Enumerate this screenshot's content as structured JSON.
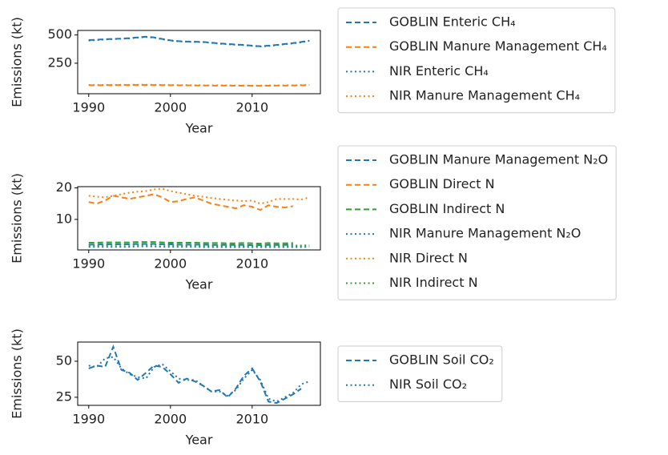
{
  "chart_data": [
    {
      "type": "line",
      "xlabel": "Year",
      "ylabel": "Emissions (kt)",
      "x": [
        1990,
        1991,
        1992,
        1993,
        1994,
        1995,
        1996,
        1997,
        1998,
        1999,
        2000,
        2001,
        2002,
        2003,
        2004,
        2005,
        2006,
        2007,
        2008,
        2009,
        2010,
        2011,
        2012,
        2013,
        2014,
        2015,
        2016,
        2017
      ],
      "xlim": [
        1988.65,
        2018.35
      ],
      "xticks": [
        1990,
        2000,
        2010
      ],
      "ylim": [
        -20,
        540
      ],
      "yticks": [
        250,
        500
      ],
      "series": [
        {
          "name": "GOBLIN Enteric CH₄",
          "color": "#1f77b4",
          "style": "dashed",
          "values": [
            455,
            458,
            462,
            465,
            468,
            472,
            478,
            485,
            478,
            465,
            452,
            445,
            442,
            440,
            438,
            432,
            425,
            420,
            415,
            412,
            405,
            400,
            405,
            412,
            420,
            428,
            438,
            450
          ]
        },
        {
          "name": "GOBLIN Manure Management CH₄",
          "color": "#ff7f0e",
          "style": "dashed",
          "values": [
            55,
            55,
            56,
            56,
            57,
            57,
            58,
            58,
            57,
            56,
            55,
            54,
            54,
            53,
            53,
            52,
            52,
            52,
            51,
            51,
            50,
            50,
            51,
            52,
            52,
            53,
            54,
            55
          ]
        },
        {
          "name": "NIR Enteric CH₄",
          "color": "#1f77b4",
          "style": "dotted",
          "values": [
            450,
            455,
            460,
            463,
            466,
            470,
            476,
            482,
            476,
            462,
            450,
            443,
            440,
            438,
            436,
            430,
            423,
            418,
            413,
            410,
            403,
            398,
            402,
            410,
            418,
            425,
            435,
            448
          ]
        },
        {
          "name": "NIR Manure Management CH₄",
          "color": "#ff7f0e",
          "style": "dotted",
          "values": [
            57,
            57,
            58,
            58,
            59,
            59,
            60,
            60,
            59,
            58,
            57,
            56,
            56,
            55,
            55,
            54,
            54,
            54,
            53,
            53,
            52,
            52,
            53,
            54,
            54,
            55,
            56,
            58
          ]
        }
      ]
    },
    {
      "type": "line",
      "xlabel": "Year",
      "ylabel": "Emissions (kt)",
      "x": [
        1990,
        1991,
        1992,
        1993,
        1994,
        1995,
        1996,
        1997,
        1998,
        1999,
        2000,
        2001,
        2002,
        2003,
        2004,
        2005,
        2006,
        2007,
        2008,
        2009,
        2010,
        2011,
        2012,
        2013,
        2014,
        2015,
        2016,
        2017
      ],
      "xlim": [
        1988.65,
        2018.35
      ],
      "xticks": [
        1990,
        2000,
        2010
      ],
      "ylim": [
        0.3,
        20.4
      ],
      "yticks": [
        10,
        20
      ],
      "series": [
        {
          "name": "GOBLIN Manure Management N₂O",
          "color": "#1f77b4",
          "style": "dashed",
          "values": [
            2.0,
            2.0,
            2.1,
            2.1,
            2.1,
            2.1,
            2.2,
            2.2,
            2.2,
            2.1,
            2.1,
            2.0,
            2.0,
            2.0,
            2.0,
            1.9,
            1.9,
            1.9,
            1.9,
            1.9,
            1.8,
            1.8,
            1.9,
            1.9,
            1.9,
            2.0,
            null,
            null
          ]
        },
        {
          "name": "GOBLIN Direct N",
          "color": "#ff7f0e",
          "style": "dashed",
          "values": [
            15.5,
            15.0,
            16.0,
            17.5,
            17.0,
            16.5,
            17.0,
            17.5,
            18.0,
            17.0,
            15.5,
            15.8,
            16.5,
            17.0,
            16.0,
            15.0,
            14.5,
            14.0,
            13.5,
            14.5,
            14.0,
            13.0,
            14.5,
            14.0,
            13.8,
            14.2,
            null,
            null
          ]
        },
        {
          "name": "GOBLIN Indirect N",
          "color": "#2ca02c",
          "style": "dashed",
          "values": [
            2.6,
            2.6,
            2.7,
            2.7,
            2.7,
            2.7,
            2.8,
            2.8,
            2.8,
            2.7,
            2.6,
            2.6,
            2.6,
            2.6,
            2.5,
            2.5,
            2.5,
            2.4,
            2.4,
            2.5,
            2.4,
            2.3,
            2.5,
            2.4,
            2.4,
            2.5,
            null,
            null
          ]
        },
        {
          "name": "NIR Manure Management N₂O",
          "color": "#1f77b4",
          "style": "dotted",
          "values": [
            1.3,
            1.3,
            1.3,
            1.3,
            1.3,
            1.3,
            1.4,
            1.4,
            1.4,
            1.3,
            1.3,
            1.3,
            1.3,
            1.3,
            1.2,
            1.2,
            1.2,
            1.2,
            1.2,
            1.2,
            1.2,
            1.2,
            1.2,
            1.2,
            1.2,
            1.2,
            1.2,
            1.3
          ]
        },
        {
          "name": "NIR Direct N",
          "color": "#ff7f0e",
          "style": "dotted",
          "values": [
            17.5,
            17.2,
            17.0,
            17.5,
            18.0,
            18.5,
            18.8,
            19.0,
            19.5,
            19.8,
            19.0,
            18.5,
            18.0,
            17.5,
            17.2,
            16.8,
            16.5,
            16.2,
            16.0,
            15.8,
            16.0,
            15.0,
            15.5,
            16.5,
            16.5,
            16.5,
            16.3,
            17.0
          ]
        },
        {
          "name": "NIR Indirect N",
          "color": "#2ca02c",
          "style": "dotted",
          "values": [
            1.8,
            1.8,
            1.8,
            1.9,
            1.9,
            1.9,
            1.9,
            1.9,
            2.0,
            1.9,
            1.8,
            1.8,
            1.8,
            1.8,
            1.7,
            1.7,
            1.7,
            1.7,
            1.6,
            1.7,
            1.7,
            1.6,
            1.7,
            1.7,
            1.7,
            1.7,
            1.7,
            1.8
          ]
        }
      ]
    },
    {
      "type": "line",
      "xlabel": "Year",
      "ylabel": "Emissions (kt)",
      "x": [
        1990,
        1991,
        1992,
        1993,
        1994,
        1995,
        1996,
        1997,
        1998,
        1999,
        2000,
        2001,
        2002,
        2003,
        2004,
        2005,
        2006,
        2007,
        2008,
        2009,
        2010,
        2011,
        2012,
        2013,
        2014,
        2015,
        2016,
        2017
      ],
      "xlim": [
        1988.65,
        2018.35
      ],
      "xticks": [
        1990,
        2000,
        2010
      ],
      "ylim": [
        19.4,
        63.3
      ],
      "yticks": [
        25,
        50
      ],
      "series": [
        {
          "name": "GOBLIN Soil CO₂",
          "color": "#1f77b4",
          "style": "dashed",
          "values": [
            45,
            47,
            46,
            60,
            44,
            42,
            37,
            42,
            47,
            46,
            41,
            35,
            38,
            36,
            33,
            29,
            30,
            25,
            31,
            40,
            45,
            36,
            22,
            21,
            24,
            27,
            31,
            null
          ]
        },
        {
          "name": "NIR Soil CO₂",
          "color": "#1f77b4",
          "style": "dotted",
          "values": [
            47,
            46,
            52,
            53,
            45,
            41,
            39,
            38,
            46,
            48,
            43,
            38,
            37,
            37,
            33,
            29,
            29,
            26,
            30,
            38,
            44,
            37,
            24,
            22,
            25,
            28,
            34,
            36
          ]
        }
      ]
    }
  ]
}
